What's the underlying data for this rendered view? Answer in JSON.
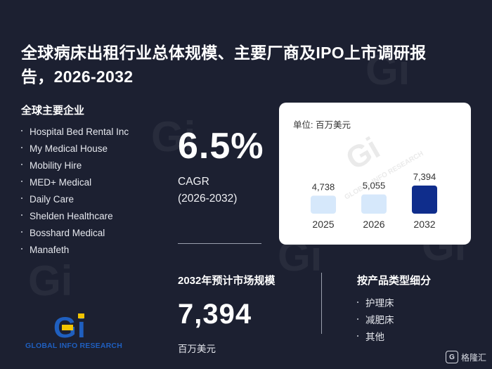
{
  "title": "全球病床出租行业总体规模、主要厂商及IPO上市调研报告，2026-2032",
  "companies": {
    "heading": "全球主要企业",
    "items": [
      "Hospital Bed Rental Inc",
      "My Medical House",
      "Mobility Hire",
      "MED+ Medical",
      "Daily Care",
      "Shelden Healthcare",
      "Bosshard Medical",
      "Manafeth"
    ]
  },
  "cagr": {
    "value": "6.5%",
    "label": "CAGR",
    "period": "(2026-2032)"
  },
  "chart_data": {
    "type": "bar",
    "unit_label": "单位: 百万美元",
    "categories": [
      "2025",
      "2026",
      "2032"
    ],
    "values": [
      4738,
      5055,
      7394
    ],
    "value_labels": [
      "4,738",
      "5,055",
      "7,394"
    ],
    "bar_colors": [
      "#d6e8fb",
      "#d6e8fb",
      "#0f2d8c"
    ],
    "watermark": "GLOBAL INFO RESEARCH"
  },
  "market": {
    "heading": "2032年预计市场规模",
    "value": "7,394",
    "unit": "百万美元"
  },
  "segments": {
    "heading": "按产品类型细分",
    "items": [
      "护理床",
      "减肥床",
      "其他"
    ]
  },
  "logo": {
    "text": "GLOBAL INFO RESEARCH",
    "mark": "Gi"
  },
  "corner_watermark": {
    "text": "格隆汇",
    "badge": "G"
  },
  "colors": {
    "background": "#1c2031",
    "accent_dark": "#0f2d8c",
    "accent_light": "#d6e8fb",
    "logo_blue": "#1f5fbf",
    "logo_yellow": "#f2c400"
  }
}
